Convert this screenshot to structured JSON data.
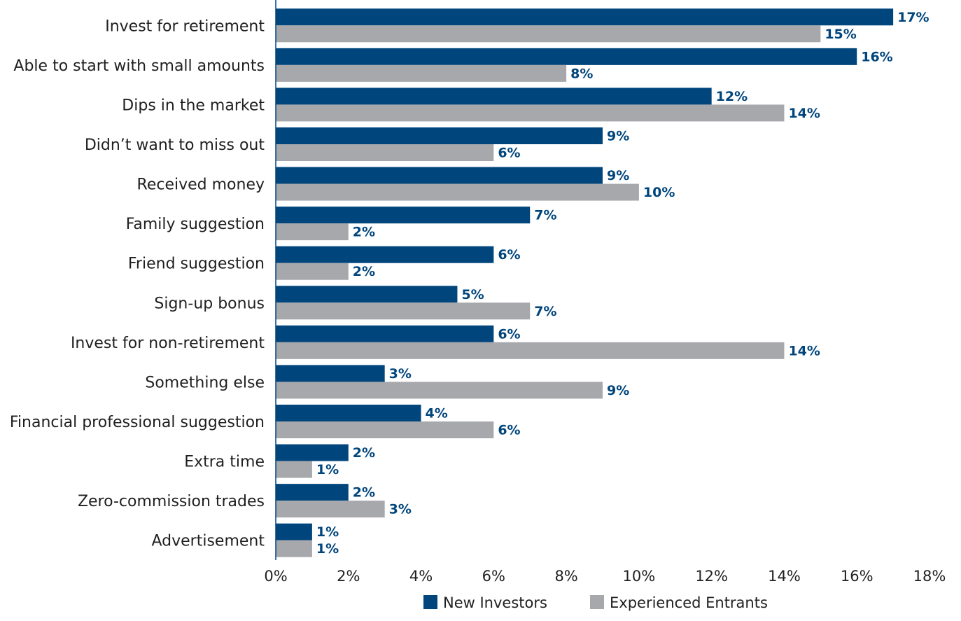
{
  "chart_data": {
    "type": "bar",
    "orientation": "horizontal",
    "categories": [
      "Invest for retirement",
      "Able to start with small amounts",
      "Dips in the market",
      "Didn’t want to miss out",
      "Received money",
      "Family suggestion",
      "Friend suggestion",
      "Sign-up bonus",
      "Invest for non-retirement",
      "Something else",
      "Financial professional suggestion",
      "Extra time",
      "Zero-commission trades",
      "Advertisement"
    ],
    "series": [
      {
        "name": "New Investors",
        "color": "#00457c",
        "values": [
          17,
          16,
          12,
          9,
          9,
          7,
          6,
          5,
          6,
          3,
          4,
          2,
          2,
          1
        ],
        "labels": [
          "17%",
          "16%",
          "12%",
          "9%",
          "9%",
          "7%",
          "6%",
          "5%",
          "6%",
          "3%",
          "4%",
          "2%",
          "2%",
          "1%"
        ]
      },
      {
        "name": "Experienced Entrants",
        "color": "#a7a8ac",
        "values": [
          15,
          8,
          14,
          6,
          10,
          2,
          2,
          7,
          14,
          9,
          6,
          1,
          3,
          1
        ],
        "labels": [
          "15%",
          "8%",
          "14%",
          "6%",
          "10%",
          "2%",
          "2%",
          "7%",
          "14%",
          "9%",
          "6%",
          "1%",
          "3%",
          "1%"
        ]
      }
    ],
    "xlim": [
      0,
      18
    ],
    "xticks": [
      0,
      2,
      4,
      6,
      8,
      10,
      12,
      14,
      16,
      18
    ],
    "xtick_labels": [
      "0%",
      "2%",
      "4%",
      "6%",
      "8%",
      "10%",
      "12%",
      "14%",
      "16%",
      "18%"
    ],
    "label_color": "#00457c",
    "title": "",
    "xlabel": "",
    "ylabel": "",
    "grid": false,
    "legend": "bottom-center"
  }
}
